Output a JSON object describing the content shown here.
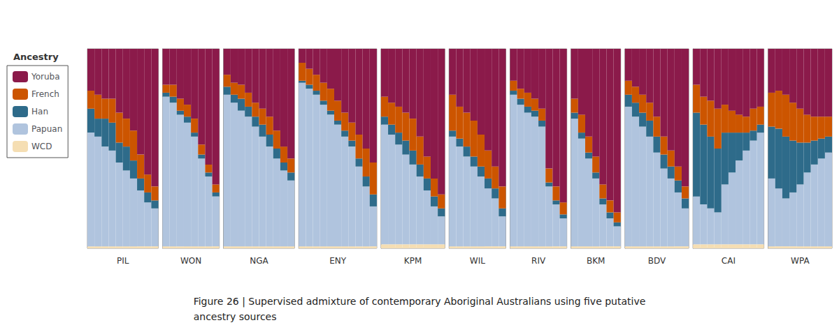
{
  "chart_data": [
    {
      "type": "bar",
      "stacked": true,
      "title": "Figure 26 | Supervised admixture of contemporary Aboriginal Australians using five putative\nancestry sources",
      "legend": "upper left",
      "legend_title": "Ancestry",
      "xlabel": "PIL",
      "categories": [
        null,
        null,
        null,
        null,
        null,
        null,
        null,
        null,
        null,
        null
      ],
      "ylim": [
        0,
        1
      ],
      "yticks": [],
      "grid": false,
      "tick_labels": false,
      "series": [
        {
          "name": "WCD",
          "color": "#F5DEB3",
          "values": [
            0.01,
            0.01,
            0.01,
            0.01,
            0.01,
            0.01,
            0.01,
            0.01,
            0.01,
            0.01
          ]
        },
        {
          "name": "Papuan",
          "color": "#B0C4DE",
          "values": [
            0.57,
            0.55,
            0.5,
            0.48,
            0.42,
            0.38,
            0.34,
            0.28,
            0.22,
            0.19
          ]
        },
        {
          "name": "Han",
          "color": "#2E6B8A",
          "values": [
            0.12,
            0.09,
            0.14,
            0.14,
            0.1,
            0.12,
            0.09,
            0.06,
            0.05,
            0.04
          ]
        },
        {
          "name": "French",
          "color": "#CC5500",
          "values": [
            0.09,
            0.12,
            0.1,
            0.12,
            0.15,
            0.14,
            0.15,
            0.12,
            0.09,
            0.07
          ]
        },
        {
          "name": "Yoruba",
          "color": "#8B1A4A",
          "values": [
            0.21,
            0.23,
            0.25,
            0.25,
            0.32,
            0.35,
            0.41,
            0.53,
            0.63,
            0.69
          ]
        }
      ]
    },
    {
      "type": "bar",
      "stacked": true,
      "xlabel": "WON",
      "categories": [
        null,
        null,
        null,
        null,
        null,
        null,
        null,
        null
      ],
      "ylim": [
        0,
        1
      ],
      "yticks": [],
      "grid": false,
      "tick_labels": false,
      "series": [
        {
          "name": "WCD",
          "color": "#F5DEB3",
          "values": [
            0.01,
            0.01,
            0.01,
            0.01,
            0.01,
            0.01,
            0.01,
            0.01
          ]
        },
        {
          "name": "Papuan",
          "color": "#B0C4DE",
          "values": [
            0.75,
            0.72,
            0.66,
            0.62,
            0.55,
            0.44,
            0.35,
            0.25
          ]
        },
        {
          "name": "Han",
          "color": "#2E6B8A",
          "values": [
            0.02,
            0.03,
            0.02,
            0.03,
            0.02,
            0.02,
            0.02,
            0.02
          ]
        },
        {
          "name": "French",
          "color": "#CC5500",
          "values": [
            0.04,
            0.06,
            0.06,
            0.06,
            0.07,
            0.05,
            0.04,
            0.04
          ]
        },
        {
          "name": "Yoruba",
          "color": "#8B1A4A",
          "values": [
            0.18,
            0.18,
            0.25,
            0.28,
            0.35,
            0.48,
            0.58,
            0.68
          ]
        }
      ]
    },
    {
      "type": "bar",
      "stacked": true,
      "xlabel": "NGA",
      "categories": [
        null,
        null,
        null,
        null,
        null,
        null,
        null,
        null,
        null,
        null
      ],
      "ylim": [
        0,
        1
      ],
      "yticks": [],
      "grid": false,
      "tick_labels": false,
      "series": [
        {
          "name": "WCD",
          "color": "#F5DEB3",
          "values": [
            0.01,
            0.01,
            0.01,
            0.01,
            0.01,
            0.01,
            0.01,
            0.01,
            0.01,
            0.01
          ]
        },
        {
          "name": "Papuan",
          "color": "#B0C4DE",
          "values": [
            0.76,
            0.72,
            0.68,
            0.65,
            0.6,
            0.55,
            0.5,
            0.44,
            0.38,
            0.33
          ]
        },
        {
          "name": "Han",
          "color": "#2E6B8A",
          "values": [
            0.04,
            0.04,
            0.06,
            0.05,
            0.05,
            0.06,
            0.06,
            0.05,
            0.04,
            0.04
          ]
        },
        {
          "name": "French",
          "color": "#CC5500",
          "values": [
            0.06,
            0.06,
            0.07,
            0.07,
            0.07,
            0.08,
            0.09,
            0.09,
            0.08,
            0.07
          ]
        },
        {
          "name": "Yoruba",
          "color": "#8B1A4A",
          "values": [
            0.13,
            0.17,
            0.18,
            0.22,
            0.27,
            0.3,
            0.34,
            0.41,
            0.49,
            0.55
          ]
        }
      ]
    },
    {
      "type": "bar",
      "stacked": true,
      "xlabel": "ENY",
      "categories": [
        null,
        null,
        null,
        null,
        null,
        null,
        null,
        null,
        null,
        null,
        null
      ],
      "ylim": [
        0,
        1
      ],
      "yticks": [],
      "grid": false,
      "tick_labels": false,
      "series": [
        {
          "name": "WCD",
          "color": "#F5DEB3",
          "values": [
            0.01,
            0.01,
            0.01,
            0.01,
            0.01,
            0.01,
            0.01,
            0.01,
            0.01,
            0.01,
            0.01
          ]
        },
        {
          "name": "Papuan",
          "color": "#B0C4DE",
          "values": [
            0.82,
            0.79,
            0.76,
            0.71,
            0.66,
            0.61,
            0.55,
            0.5,
            0.4,
            0.3,
            0.2
          ]
        },
        {
          "name": "Han",
          "color": "#2E6B8A",
          "values": [
            0.01,
            0.02,
            0.02,
            0.02,
            0.02,
            0.02,
            0.03,
            0.03,
            0.04,
            0.05,
            0.06
          ]
        },
        {
          "name": "French",
          "color": "#CC5500",
          "values": [
            0.09,
            0.08,
            0.08,
            0.09,
            0.11,
            0.1,
            0.09,
            0.09,
            0.12,
            0.14,
            0.16
          ]
        },
        {
          "name": "Yoruba",
          "color": "#8B1A4A",
          "values": [
            0.07,
            0.1,
            0.13,
            0.17,
            0.2,
            0.26,
            0.32,
            0.37,
            0.43,
            0.5,
            0.57
          ]
        }
      ]
    },
    {
      "type": "bar",
      "stacked": true,
      "xlabel": "KPM",
      "categories": [
        null,
        null,
        null,
        null,
        null,
        null,
        null,
        null,
        null
      ],
      "ylim": [
        0,
        1
      ],
      "yticks": [],
      "grid": false,
      "tick_labels": false,
      "series": [
        {
          "name": "WCD",
          "color": "#F5DEB3",
          "values": [
            0.02,
            0.02,
            0.02,
            0.02,
            0.02,
            0.02,
            0.02,
            0.02,
            0.02
          ]
        },
        {
          "name": "Papuan",
          "color": "#B0C4DE",
          "values": [
            0.6,
            0.55,
            0.5,
            0.45,
            0.4,
            0.34,
            0.27,
            0.19,
            0.14
          ]
        },
        {
          "name": "Han",
          "color": "#2E6B8A",
          "values": [
            0.04,
            0.05,
            0.06,
            0.07,
            0.07,
            0.06,
            0.06,
            0.05,
            0.04
          ]
        },
        {
          "name": "French",
          "color": "#CC5500",
          "values": [
            0.1,
            0.11,
            0.13,
            0.14,
            0.16,
            0.14,
            0.11,
            0.09,
            0.07
          ]
        },
        {
          "name": "Yoruba",
          "color": "#8B1A4A",
          "values": [
            0.24,
            0.27,
            0.29,
            0.32,
            0.35,
            0.44,
            0.54,
            0.65,
            0.73
          ]
        }
      ]
    },
    {
      "type": "bar",
      "stacked": true,
      "xlabel": "WIL",
      "categories": [
        null,
        null,
        null,
        null,
        null,
        null,
        null,
        null
      ],
      "ylim": [
        0,
        1
      ],
      "yticks": [],
      "grid": false,
      "tick_labels": false,
      "series": [
        {
          "name": "WCD",
          "color": "#F5DEB3",
          "values": [
            0.01,
            0.01,
            0.01,
            0.01,
            0.01,
            0.01,
            0.01,
            0.01
          ]
        },
        {
          "name": "Papuan",
          "color": "#B0C4DE",
          "values": [
            0.55,
            0.5,
            0.45,
            0.4,
            0.35,
            0.29,
            0.24,
            0.15
          ]
        },
        {
          "name": "Han",
          "color": "#2E6B8A",
          "values": [
            0.03,
            0.04,
            0.05,
            0.05,
            0.05,
            0.05,
            0.05,
            0.04
          ]
        },
        {
          "name": "French",
          "color": "#CC5500",
          "values": [
            0.18,
            0.16,
            0.17,
            0.18,
            0.16,
            0.14,
            0.11,
            0.11
          ]
        },
        {
          "name": "Yoruba",
          "color": "#8B1A4A",
          "values": [
            0.23,
            0.29,
            0.32,
            0.36,
            0.43,
            0.51,
            0.59,
            0.69
          ]
        }
      ]
    },
    {
      "type": "bar",
      "stacked": true,
      "xlabel": "RIV",
      "categories": [
        null,
        null,
        null,
        null,
        null,
        null,
        null,
        null
      ],
      "ylim": [
        0,
        1
      ],
      "yticks": [],
      "grid": false,
      "tick_labels": false,
      "series": [
        {
          "name": "WCD",
          "color": "#F5DEB3",
          "values": [
            0.01,
            0.01,
            0.01,
            0.01,
            0.01,
            0.01,
            0.01,
            0.01
          ]
        },
        {
          "name": "Papuan",
          "color": "#B0C4DE",
          "values": [
            0.76,
            0.71,
            0.67,
            0.65,
            0.6,
            0.3,
            0.21,
            0.14
          ]
        },
        {
          "name": "Han",
          "color": "#2E6B8A",
          "values": [
            0.02,
            0.03,
            0.03,
            0.03,
            0.03,
            0.02,
            0.02,
            0.02
          ]
        },
        {
          "name": "French",
          "color": "#CC5500",
          "values": [
            0.05,
            0.05,
            0.07,
            0.06,
            0.06,
            0.07,
            0.07,
            0.06
          ]
        },
        {
          "name": "Yoruba",
          "color": "#8B1A4A",
          "values": [
            0.16,
            0.2,
            0.22,
            0.25,
            0.3,
            0.6,
            0.69,
            0.77
          ]
        }
      ]
    },
    {
      "type": "bar",
      "stacked": true,
      "xlabel": "BKM",
      "categories": [
        null,
        null,
        null,
        null,
        null,
        null,
        null
      ],
      "ylim": [
        0,
        1
      ],
      "yticks": [],
      "grid": false,
      "tick_labels": false,
      "series": [
        {
          "name": "WCD",
          "color": "#F5DEB3",
          "values": [
            0.01,
            0.01,
            0.01,
            0.01,
            0.01,
            0.01,
            0.01
          ]
        },
        {
          "name": "Papuan",
          "color": "#B0C4DE",
          "values": [
            0.64,
            0.54,
            0.44,
            0.34,
            0.21,
            0.14,
            0.1
          ]
        },
        {
          "name": "Han",
          "color": "#2E6B8A",
          "values": [
            0.03,
            0.03,
            0.03,
            0.03,
            0.03,
            0.03,
            0.02
          ]
        },
        {
          "name": "French",
          "color": "#CC5500",
          "values": [
            0.07,
            0.09,
            0.08,
            0.08,
            0.07,
            0.06,
            0.05
          ]
        },
        {
          "name": "Yoruba",
          "color": "#8B1A4A",
          "values": [
            0.25,
            0.33,
            0.44,
            0.54,
            0.68,
            0.76,
            0.82
          ]
        }
      ]
    },
    {
      "type": "bar",
      "stacked": true,
      "xlabel": "BDV",
      "categories": [
        null,
        null,
        null,
        null,
        null,
        null,
        null,
        null,
        null
      ],
      "ylim": [
        0,
        1
      ],
      "yticks": [],
      "grid": false,
      "tick_labels": false,
      "series": [
        {
          "name": "WCD",
          "color": "#F5DEB3",
          "values": [
            0.01,
            0.01,
            0.01,
            0.01,
            0.01,
            0.01,
            0.01,
            0.01,
            0.01
          ]
        },
        {
          "name": "Papuan",
          "color": "#B0C4DE",
          "values": [
            0.7,
            0.65,
            0.6,
            0.55,
            0.47,
            0.39,
            0.34,
            0.27,
            0.19
          ]
        },
        {
          "name": "Han",
          "color": "#2E6B8A",
          "values": [
            0.06,
            0.07,
            0.07,
            0.08,
            0.08,
            0.07,
            0.06,
            0.06,
            0.05
          ]
        },
        {
          "name": "French",
          "color": "#CC5500",
          "values": [
            0.07,
            0.08,
            0.09,
            0.09,
            0.1,
            0.09,
            0.08,
            0.07,
            0.06
          ]
        },
        {
          "name": "Yoruba",
          "color": "#8B1A4A",
          "values": [
            0.16,
            0.19,
            0.23,
            0.27,
            0.34,
            0.44,
            0.51,
            0.59,
            0.69
          ]
        }
      ]
    },
    {
      "type": "bar",
      "stacked": true,
      "xlabel": "CAI",
      "categories": [
        null,
        null,
        null,
        null,
        null,
        null,
        null,
        null,
        null,
        null
      ],
      "ylim": [
        0,
        1
      ],
      "yticks": [],
      "grid": false,
      "tick_labels": false,
      "series": [
        {
          "name": "WCD",
          "color": "#F5DEB3",
          "values": [
            0.02,
            0.02,
            0.02,
            0.02,
            0.02,
            0.02,
            0.02,
            0.02,
            0.02,
            0.02
          ]
        },
        {
          "name": "Papuan",
          "color": "#B0C4DE",
          "values": [
            0.24,
            0.2,
            0.18,
            0.16,
            0.3,
            0.36,
            0.42,
            0.47,
            0.52,
            0.56
          ]
        },
        {
          "name": "Han",
          "color": "#2E6B8A",
          "values": [
            0.42,
            0.4,
            0.36,
            0.32,
            0.26,
            0.2,
            0.14,
            0.09,
            0.05,
            0.04
          ]
        },
        {
          "name": "French",
          "color": "#CC5500",
          "values": [
            0.14,
            0.14,
            0.18,
            0.2,
            0.14,
            0.11,
            0.09,
            0.08,
            0.11,
            0.09
          ]
        },
        {
          "name": "Yoruba",
          "color": "#8B1A4A",
          "values": [
            0.18,
            0.24,
            0.26,
            0.3,
            0.28,
            0.31,
            0.33,
            0.34,
            0.3,
            0.29
          ]
        }
      ]
    },
    {
      "type": "bar",
      "stacked": true,
      "xlabel": "WPA",
      "categories": [
        null,
        null,
        null,
        null,
        null,
        null,
        null,
        null,
        null
      ],
      "ylim": [
        0,
        1
      ],
      "yticks": [],
      "grid": false,
      "tick_labels": false,
      "series": [
        {
          "name": "WCD",
          "color": "#F5DEB3",
          "values": [
            0.01,
            0.01,
            0.01,
            0.01,
            0.01,
            0.01,
            0.01,
            0.01,
            0.01
          ]
        },
        {
          "name": "Papuan",
          "color": "#B0C4DE",
          "values": [
            0.34,
            0.29,
            0.24,
            0.27,
            0.31,
            0.37,
            0.41,
            0.44,
            0.47
          ]
        },
        {
          "name": "Han",
          "color": "#2E6B8A",
          "values": [
            0.26,
            0.3,
            0.31,
            0.26,
            0.21,
            0.15,
            0.12,
            0.1,
            0.08
          ]
        },
        {
          "name": "French",
          "color": "#CC5500",
          "values": [
            0.17,
            0.19,
            0.21,
            0.19,
            0.17,
            0.14,
            0.12,
            0.11,
            0.1
          ]
        },
        {
          "name": "Yoruba",
          "color": "#8B1A4A",
          "values": [
            0.22,
            0.21,
            0.23,
            0.27,
            0.3,
            0.33,
            0.34,
            0.34,
            0.34
          ]
        }
      ]
    }
  ]
}
